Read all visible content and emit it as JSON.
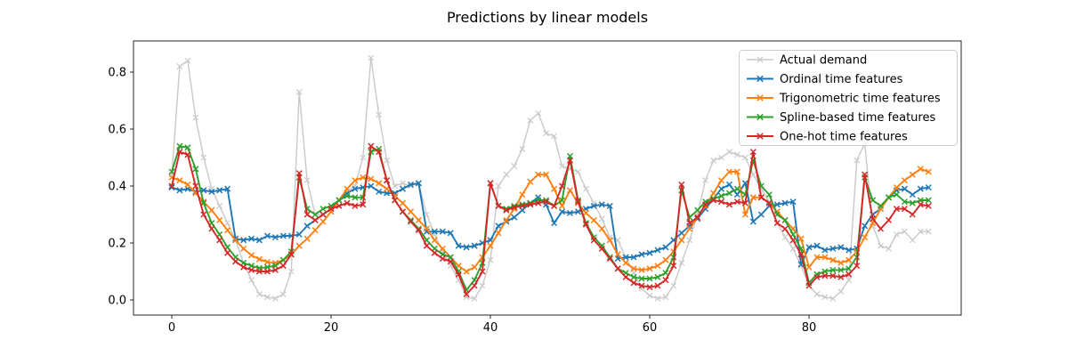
{
  "chart_data": {
    "type": "line",
    "title": "Predictions by linear models",
    "marker": "x",
    "grid": false,
    "legend_position": "upper right",
    "xlim": [
      -4.8,
      99.8
    ],
    "ylim": [
      -0.053,
      0.91
    ],
    "x_ticks": [
      0,
      20,
      40,
      60,
      80
    ],
    "x_tick_labels": [
      "0",
      "20",
      "40",
      "60",
      "80"
    ],
    "y_ticks": [
      0.0,
      0.2,
      0.4,
      0.6,
      0.8
    ],
    "y_tick_labels": [
      "0.0",
      "0.2",
      "0.4",
      "0.6",
      "0.8"
    ],
    "x_start": 0,
    "x_step": 1,
    "series": [
      {
        "name": "Actual demand",
        "color": "#c9c9c9",
        "values": [
          0.44,
          0.82,
          0.84,
          0.64,
          0.5,
          0.39,
          0.33,
          0.27,
          0.21,
          0.13,
          0.07,
          0.02,
          0.01,
          0.005,
          0.02,
          0.1,
          0.73,
          0.42,
          0.3,
          0.3,
          0.32,
          0.35,
          0.38,
          0.4,
          0.5,
          0.85,
          0.65,
          0.49,
          0.4,
          0.41,
          0.4,
          0.41,
          0.3,
          0.23,
          0.17,
          0.12,
          0.07,
          0.01,
          0.005,
          0.05,
          0.14,
          0.4,
          0.44,
          0.47,
          0.53,
          0.63,
          0.655,
          0.585,
          0.575,
          0.47,
          0.46,
          0.45,
          0.39,
          0.34,
          0.285,
          0.22,
          0.21,
          0.15,
          0.095,
          0.04,
          0.015,
          0.005,
          0.01,
          0.05,
          0.13,
          0.21,
          0.3,
          0.42,
          0.49,
          0.5,
          0.52,
          0.51,
          0.5,
          0.44,
          0.39,
          0.345,
          0.27,
          0.22,
          0.18,
          0.12,
          0.05,
          0.02,
          0.01,
          0.005,
          0.03,
          0.07,
          0.49,
          0.55,
          0.26,
          0.19,
          0.18,
          0.23,
          0.24,
          0.21,
          0.24,
          0.24
        ]
      },
      {
        "name": "Ordinal time features",
        "color": "#1f77b4",
        "values": [
          0.395,
          0.385,
          0.39,
          0.38,
          0.385,
          0.38,
          0.385,
          0.39,
          0.215,
          0.21,
          0.215,
          0.21,
          0.225,
          0.22,
          0.225,
          0.225,
          0.23,
          0.26,
          0.28,
          0.3,
          0.32,
          0.35,
          0.375,
          0.39,
          0.395,
          0.4,
          0.38,
          0.375,
          0.375,
          0.39,
          0.405,
          0.41,
          0.24,
          0.24,
          0.24,
          0.235,
          0.19,
          0.185,
          0.19,
          0.2,
          0.21,
          0.26,
          0.275,
          0.29,
          0.315,
          0.34,
          0.36,
          0.335,
          0.27,
          0.31,
          0.305,
          0.31,
          0.32,
          0.33,
          0.335,
          0.33,
          0.145,
          0.15,
          0.15,
          0.16,
          0.165,
          0.175,
          0.185,
          0.21,
          0.235,
          0.26,
          0.285,
          0.32,
          0.355,
          0.39,
          0.405,
          0.37,
          0.41,
          0.275,
          0.3,
          0.33,
          0.335,
          0.34,
          0.345,
          0.125,
          0.185,
          0.19,
          0.175,
          0.18,
          0.185,
          0.175,
          0.18,
          0.26,
          0.3,
          0.32,
          0.36,
          0.385,
          0.39,
          0.37,
          0.39,
          0.395
        ]
      },
      {
        "name": "Trigonometric time features",
        "color": "#ff7f0e",
        "values": [
          0.43,
          0.42,
          0.405,
          0.375,
          0.345,
          0.315,
          0.28,
          0.245,
          0.21,
          0.18,
          0.157,
          0.143,
          0.133,
          0.13,
          0.14,
          0.16,
          0.19,
          0.215,
          0.245,
          0.275,
          0.31,
          0.35,
          0.39,
          0.42,
          0.43,
          0.425,
          0.41,
          0.39,
          0.365,
          0.34,
          0.31,
          0.28,
          0.25,
          0.21,
          0.18,
          0.15,
          0.12,
          0.1,
          0.115,
          0.15,
          0.19,
          0.235,
          0.28,
          0.32,
          0.37,
          0.415,
          0.44,
          0.44,
          0.39,
          0.33,
          0.385,
          0.34,
          0.305,
          0.28,
          0.25,
          0.21,
          0.16,
          0.13,
          0.11,
          0.105,
          0.11,
          0.12,
          0.14,
          0.17,
          0.21,
          0.25,
          0.29,
          0.33,
          0.375,
          0.42,
          0.45,
          0.45,
          0.3,
          0.36,
          0.36,
          0.34,
          0.31,
          0.28,
          0.25,
          0.215,
          0.115,
          0.15,
          0.15,
          0.14,
          0.13,
          0.14,
          0.17,
          0.22,
          0.27,
          0.32,
          0.36,
          0.395,
          0.42,
          0.44,
          0.46,
          0.45
        ]
      },
      {
        "name": "Spline-based time features",
        "color": "#2ca02c",
        "values": [
          0.45,
          0.54,
          0.535,
          0.46,
          0.34,
          0.27,
          0.23,
          0.185,
          0.15,
          0.13,
          0.12,
          0.112,
          0.115,
          0.12,
          0.14,
          0.17,
          0.43,
          0.32,
          0.3,
          0.32,
          0.33,
          0.35,
          0.365,
          0.36,
          0.36,
          0.52,
          0.53,
          0.42,
          0.35,
          0.31,
          0.28,
          0.25,
          0.21,
          0.18,
          0.16,
          0.15,
          0.1,
          0.035,
          0.07,
          0.13,
          0.41,
          0.33,
          0.32,
          0.33,
          0.335,
          0.34,
          0.35,
          0.35,
          0.33,
          0.35,
          0.505,
          0.35,
          0.27,
          0.22,
          0.19,
          0.15,
          0.11,
          0.095,
          0.08,
          0.075,
          0.075,
          0.08,
          0.095,
          0.15,
          0.385,
          0.29,
          0.315,
          0.345,
          0.355,
          0.365,
          0.375,
          0.39,
          0.37,
          0.49,
          0.4,
          0.37,
          0.3,
          0.28,
          0.23,
          0.18,
          0.06,
          0.09,
          0.1,
          0.105,
          0.105,
          0.11,
          0.15,
          0.43,
          0.35,
          0.33,
          0.36,
          0.37,
          0.345,
          0.34,
          0.35,
          0.35
        ]
      },
      {
        "name": "One-hot time features",
        "color": "#d62728",
        "values": [
          0.4,
          0.52,
          0.51,
          0.4,
          0.3,
          0.25,
          0.21,
          0.165,
          0.135,
          0.115,
          0.105,
          0.1,
          0.1,
          0.105,
          0.12,
          0.16,
          0.445,
          0.3,
          0.28,
          0.3,
          0.32,
          0.33,
          0.34,
          0.33,
          0.335,
          0.54,
          0.52,
          0.42,
          0.35,
          0.31,
          0.275,
          0.245,
          0.19,
          0.165,
          0.145,
          0.135,
          0.09,
          0.02,
          0.05,
          0.1,
          0.41,
          0.33,
          0.315,
          0.325,
          0.33,
          0.335,
          0.34,
          0.345,
          0.33,
          0.4,
          0.49,
          0.345,
          0.265,
          0.21,
          0.18,
          0.145,
          0.11,
          0.08,
          0.06,
          0.05,
          0.045,
          0.05,
          0.07,
          0.12,
          0.405,
          0.27,
          0.29,
          0.335,
          0.35,
          0.345,
          0.335,
          0.345,
          0.34,
          0.52,
          0.36,
          0.34,
          0.27,
          0.25,
          0.21,
          0.16,
          0.05,
          0.08,
          0.085,
          0.085,
          0.08,
          0.09,
          0.12,
          0.44,
          0.285,
          0.25,
          0.28,
          0.32,
          0.32,
          0.3,
          0.335,
          0.33
        ]
      }
    ]
  }
}
